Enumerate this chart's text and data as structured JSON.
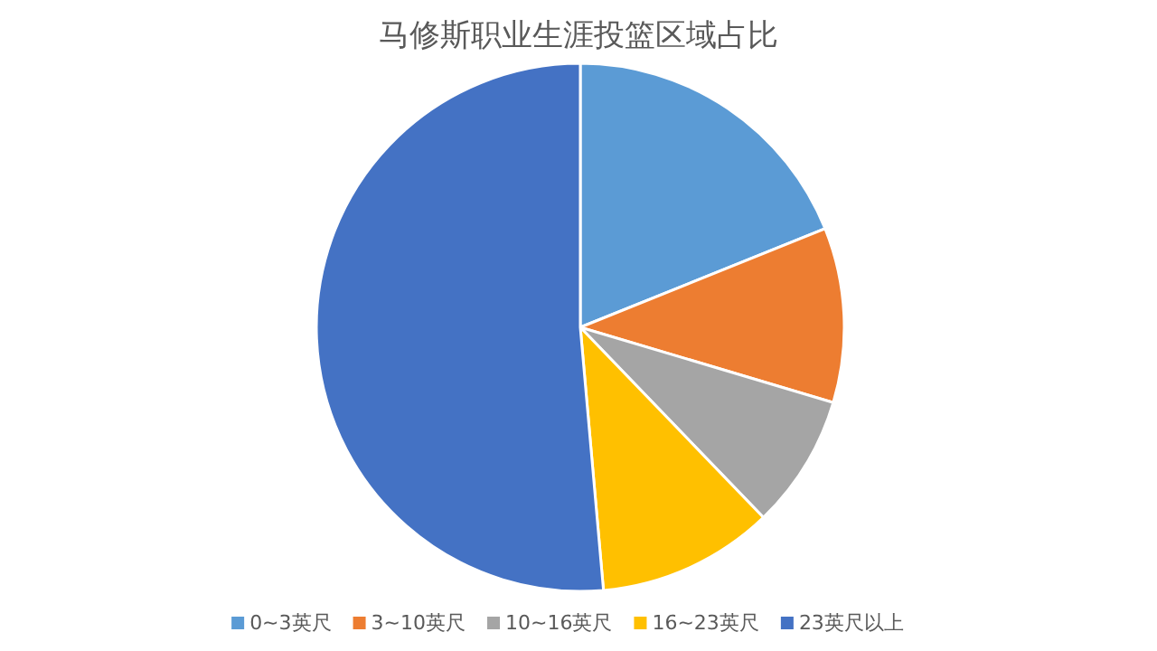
{
  "chart_data": {
    "type": "pie",
    "title": "马修斯职业生涯投篮区域占比",
    "categories": [
      "0~3英尺",
      "3~10英尺",
      "10~16英尺",
      "16~23英尺",
      "23英尺以上"
    ],
    "values": [
      18.9,
      10.7,
      8.2,
      10.8,
      51.4
    ],
    "colors": [
      "#5b9bd5",
      "#ed7d31",
      "#a5a5a5",
      "#ffc000",
      "#4472c4"
    ],
    "legend": "bottom"
  }
}
